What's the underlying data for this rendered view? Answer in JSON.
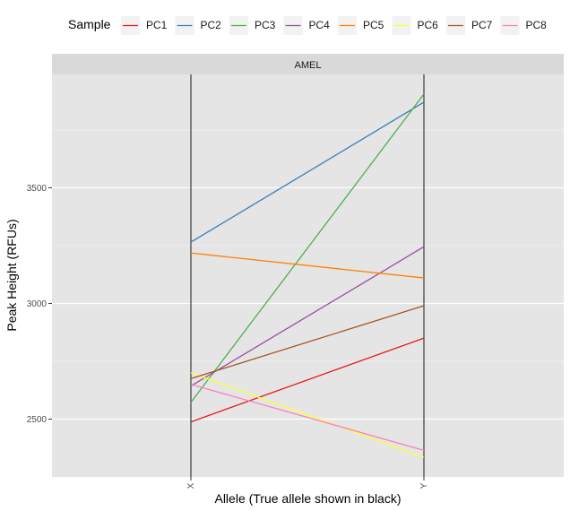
{
  "chart_data": {
    "type": "line",
    "facet_label": "AMEL",
    "xlabel": "Allele (True allele shown in black)",
    "ylabel": "Peak Height (RFUs)",
    "categories": [
      "X",
      "Y"
    ],
    "ylim": [
      2250,
      3990
    ],
    "yticks": [
      2500,
      3000,
      3500
    ],
    "grid": true,
    "legend_title": "Sample",
    "legend_position": "top",
    "true_allele_color": "#000000",
    "series": [
      {
        "name": "PC1",
        "color": "#e41a1c",
        "values": [
          2488,
          2850
        ]
      },
      {
        "name": "PC2",
        "color": "#377eb8",
        "values": [
          3265,
          3870
        ]
      },
      {
        "name": "PC3",
        "color": "#4daf4a",
        "values": [
          2572,
          3905
        ]
      },
      {
        "name": "PC4",
        "color": "#984ea3",
        "values": [
          2643,
          3245
        ]
      },
      {
        "name": "PC5",
        "color": "#ff7f00",
        "values": [
          3218,
          3110
        ]
      },
      {
        "name": "PC6",
        "color": "#ffff33",
        "values": [
          2700,
          2335
        ]
      },
      {
        "name": "PC7",
        "color": "#a65628",
        "values": [
          2675,
          2990
        ]
      },
      {
        "name": "PC8",
        "color": "#f781bf",
        "values": [
          2650,
          2365
        ]
      }
    ]
  }
}
